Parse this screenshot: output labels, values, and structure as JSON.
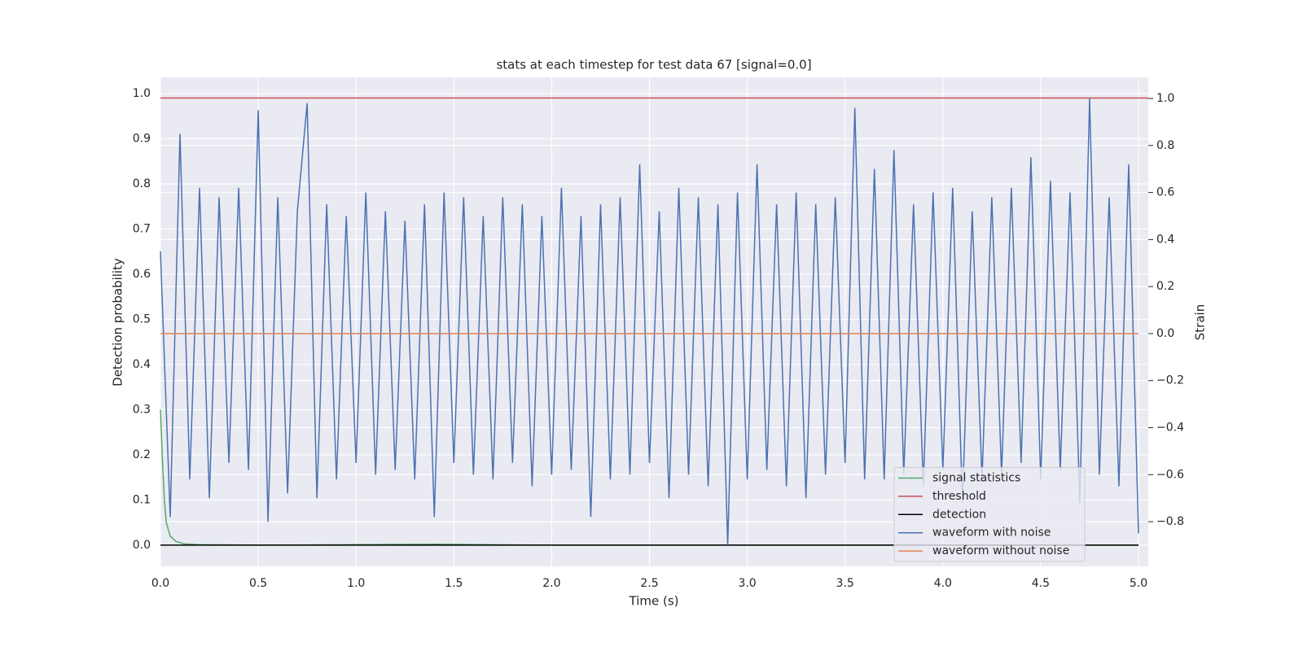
{
  "chart_data": {
    "type": "line",
    "title": "stats at each timestep for test data 67 [signal=0.0]",
    "xlabel": "Time (s)",
    "ylabel": "Detection probability",
    "y2label": "Strain",
    "xlim": [
      0,
      5.05
    ],
    "ylim": [
      -0.047,
      1.036
    ],
    "y2lim": [
      -0.99,
      1.09
    ],
    "xticks": [
      {
        "value": 0,
        "label": "0.0"
      },
      0.5,
      {
        "value": 1,
        "label": "1.0"
      },
      1.5,
      {
        "value": 2,
        "label": "2.0"
      },
      2.5,
      {
        "value": 3,
        "label": "3.0"
      },
      3.5,
      {
        "value": 4,
        "label": "4.0"
      },
      4.5,
      {
        "value": 5,
        "label": "5.0"
      }
    ],
    "yticks": [
      {
        "value": 0,
        "label": "0.0"
      },
      0.1,
      0.2,
      0.3,
      0.4,
      0.5,
      0.6,
      0.7,
      0.8,
      0.9,
      {
        "value": 1,
        "label": "1.0"
      }
    ],
    "y2ticks": [
      {
        "value": -0.8,
        "label": "−0.8"
      },
      {
        "value": -0.6,
        "label": "−0.6"
      },
      {
        "value": -0.4,
        "label": "−0.4"
      },
      {
        "value": -0.2,
        "label": "−0.2"
      },
      {
        "value": 0,
        "label": "0.0"
      },
      0.2,
      0.4,
      0.6,
      0.8,
      {
        "value": 1,
        "label": "1.0"
      }
    ],
    "grid": true,
    "legend": "lower right",
    "series": [
      {
        "name": "signal statistics",
        "color": "#55a868",
        "x": [
          0,
          0.01,
          0.02,
          0.03,
          0.05,
          0.08,
          0.12,
          0.2,
          0.5,
          1.4,
          2.0,
          5.0
        ],
        "values": [
          0.3,
          0.19,
          0.1,
          0.05,
          0.02,
          0.008,
          0.003,
          0.001,
          0,
          0.002,
          0,
          0
        ]
      },
      {
        "name": "threshold",
        "color": "#c44e52",
        "x": [
          0,
          5.05
        ],
        "values": [
          0.99,
          0.99
        ]
      },
      {
        "name": "detection",
        "color": "#000000",
        "x": [
          0,
          5
        ],
        "values": [
          0,
          0
        ]
      },
      {
        "name": "waveform with noise",
        "color": "#4c72b0",
        "axis": "y2",
        "x": [
          0,
          0.05,
          0.1,
          0.15,
          0.2,
          0.25,
          0.3,
          0.35,
          0.4,
          0.45,
          0.5,
          0.55,
          0.6,
          0.65,
          0.7,
          0.75,
          0.8,
          0.85,
          0.9,
          0.95,
          1,
          1.05,
          1.1,
          1.15,
          1.2,
          1.25,
          1.3,
          1.35,
          1.4,
          1.45,
          1.5,
          1.55,
          1.6,
          1.65,
          1.7,
          1.75,
          1.8,
          1.85,
          1.9,
          1.95,
          2,
          2.05,
          2.1,
          2.15,
          2.2,
          2.25,
          2.3,
          2.35,
          2.4,
          2.45,
          2.5,
          2.55,
          2.6,
          2.65,
          2.7,
          2.75,
          2.8,
          2.85,
          2.9,
          2.95,
          3,
          3.05,
          3.1,
          3.15,
          3.2,
          3.25,
          3.3,
          3.35,
          3.4,
          3.45,
          3.5,
          3.55,
          3.6,
          3.65,
          3.7,
          3.75,
          3.8,
          3.85,
          3.9,
          3.95,
          4,
          4.05,
          4.1,
          4.15,
          4.2,
          4.25,
          4.3,
          4.35,
          4.4,
          4.45,
          4.5,
          4.55,
          4.6,
          4.65,
          4.7,
          4.75,
          4.8,
          4.85,
          4.9,
          4.95,
          5
        ],
        "values": [
          0.35,
          -0.78,
          0.85,
          -0.62,
          0.62,
          -0.7,
          0.58,
          -0.55,
          0.62,
          -0.58,
          0.95,
          -0.8,
          0.58,
          -0.68,
          0.52,
          0.98,
          -0.7,
          0.55,
          -0.62,
          0.5,
          -0.55,
          0.6,
          -0.6,
          0.52,
          -0.58,
          0.48,
          -0.62,
          0.55,
          -0.78,
          0.6,
          -0.55,
          0.58,
          -0.6,
          0.5,
          -0.62,
          0.58,
          -0.55,
          0.55,
          -0.65,
          0.5,
          -0.6,
          0.62,
          -0.58,
          0.5,
          -0.78,
          0.55,
          -0.62,
          0.58,
          -0.6,
          0.72,
          -0.55,
          0.52,
          -0.7,
          0.62,
          -0.6,
          0.58,
          -0.65,
          0.55,
          -0.9,
          0.6,
          -0.62,
          0.72,
          -0.58,
          0.55,
          -0.65,
          0.6,
          -0.7,
          0.55,
          -0.6,
          0.58,
          -0.55,
          0.96,
          -0.62,
          0.7,
          -0.62,
          0.78,
          -0.6,
          0.55,
          -0.65,
          0.6,
          -0.58,
          0.62,
          -0.72,
          0.52,
          -0.62,
          0.58,
          -0.6,
          0.62,
          -0.55,
          0.75,
          -0.62,
          0.65,
          -0.58,
          0.6,
          -0.72,
          1.0,
          -0.6,
          0.58,
          -0.65,
          0.72,
          -0.85
        ]
      },
      {
        "name": "waveform without noise",
        "color": "#dd8452",
        "axis": "y2",
        "x": [
          0,
          5
        ],
        "values": [
          0,
          0
        ]
      }
    ]
  }
}
